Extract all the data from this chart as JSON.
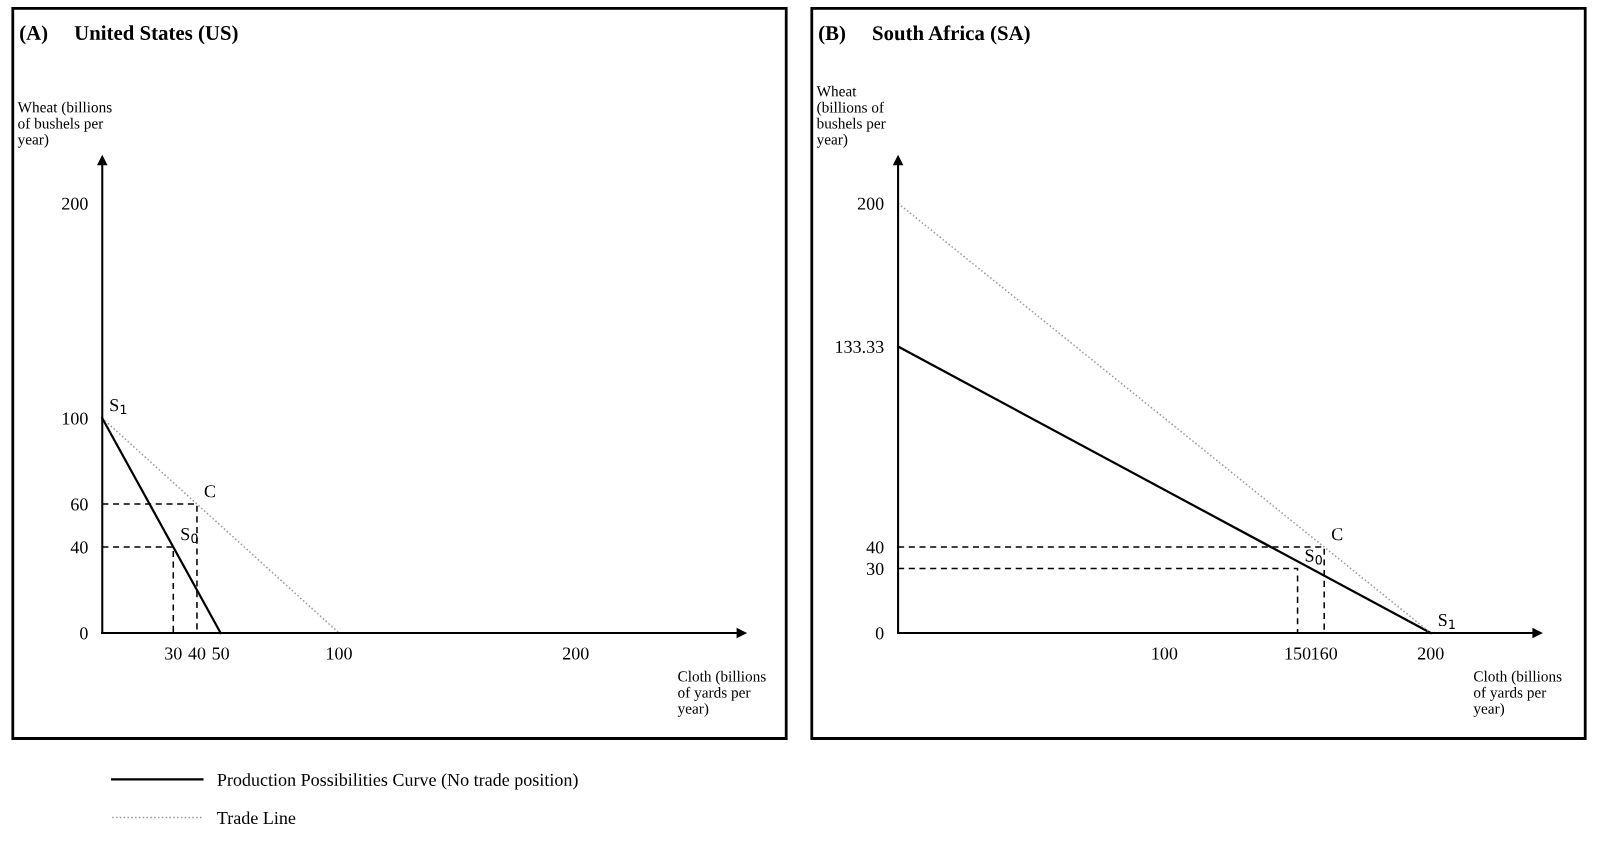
{
  "chart_data": [
    {
      "type": "line",
      "title": "(A)     United States (US)",
      "xlabel": "Cloth (billions\nof yards per\nyear)",
      "ylabel": "Wheat (billions\nof bushels per\nyear)",
      "xlim": [
        0,
        270
      ],
      "ylim": [
        0,
        220
      ],
      "xticks": [
        30,
        40,
        50,
        100,
        200
      ],
      "yticks": [
        0,
        40,
        60,
        100,
        200
      ],
      "grid": false,
      "legend": "bottom",
      "marker": "none",
      "series": [
        {
          "name": "Production Possibilities Curve (No trade position)",
          "color": "#000000",
          "line_style": "solid",
          "x": [
            0,
            50
          ],
          "values": [
            100,
            0
          ]
        },
        {
          "name": "Trade Line",
          "color": "#999999",
          "line_style": "dotted",
          "x": [
            0,
            100
          ],
          "values": [
            100,
            0
          ]
        },
        {
          "color": "#000000",
          "line_style": "dashed",
          "x": [
            0,
            30,
            30
          ],
          "values": [
            40,
            40,
            0
          ]
        },
        {
          "color": "#000000",
          "line_style": "dashed",
          "x": [
            0,
            40,
            40
          ],
          "values": [
            60,
            60,
            0
          ]
        }
      ],
      "annotations": [
        {
          "text": "S$_{1}$",
          "x": 0,
          "y": 100
        },
        {
          "text": "S$_{0}$",
          "x": 30,
          "y": 40
        },
        {
          "text": "C",
          "x": 40,
          "y": 60
        }
      ]
    },
    {
      "type": "line",
      "title": "(B)     South Africa (SA)",
      "xlabel": "Cloth (billions\nof yards per\nyear)",
      "ylabel": "Wheat\n(billions of\nbushels per\nyear)",
      "xlim": [
        0,
        240
      ],
      "ylim": [
        0,
        220
      ],
      "xticks": [
        100,
        150,
        160,
        200
      ],
      "yticks": [
        0,
        30,
        40,
        133.33,
        200
      ],
      "grid": false,
      "marker": "none",
      "series": [
        {
          "name": "Production Possibilities Curve (No trade position)",
          "color": "#000000",
          "line_style": "solid",
          "x": [
            0,
            200
          ],
          "values": [
            133.33,
            0
          ]
        },
        {
          "name": "Trade Line",
          "color": "#999999",
          "line_style": "dotted",
          "x": [
            0,
            200
          ],
          "values": [
            200,
            0
          ]
        },
        {
          "color": "#000000",
          "line_style": "dashed",
          "x": [
            0,
            150,
            150
          ],
          "values": [
            30,
            30,
            0
          ]
        },
        {
          "color": "#000000",
          "line_style": "dashed",
          "x": [
            0,
            160,
            160
          ],
          "values": [
            40,
            40,
            0
          ]
        }
      ],
      "annotations": [
        {
          "text": "S$_{1}$",
          "x": 200,
          "y": 0
        },
        {
          "text": "S$_{0}$",
          "x": 150,
          "y": 30
        },
        {
          "text": "C",
          "x": 160,
          "y": 40
        }
      ]
    }
  ]
}
